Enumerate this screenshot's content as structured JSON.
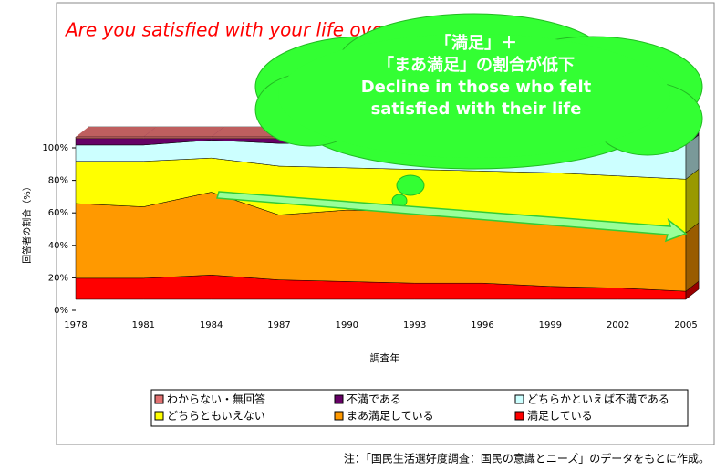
{
  "chart_data": {
    "type": "area",
    "stacked": true,
    "title": "Are you satisfied with your life overall?",
    "callout": [
      "「満足」＋",
      "「まあ満足」の割合が低下",
      "Decline in those who felt",
      "satisfied with their life"
    ],
    "xlabel": "調査年",
    "ylabel": "回答者の割合（%）",
    "note": "注：「国民生活選好度調査：国民の意識とニーズ」のデータをもとに作成。",
    "categories": [
      "1978",
      "1981",
      "1984",
      "1987",
      "1990",
      "1993",
      "1996",
      "1999",
      "2002",
      "2005"
    ],
    "ylim": [
      0,
      100
    ],
    "yticks": [
      {
        "value": 0,
        "label": "0%"
      },
      {
        "value": 20,
        "label": "20%"
      },
      {
        "value": 40,
        "label": "40%"
      },
      {
        "value": 60,
        "label": "60%"
      },
      {
        "value": 80,
        "label": "80%"
      },
      {
        "value": 100,
        "label": "100%"
      }
    ],
    "series": [
      {
        "name": "満足している",
        "color": "#ff0000",
        "values": [
          13,
          13,
          15,
          12,
          11,
          10,
          10,
          8,
          7,
          5
        ]
      },
      {
        "name": "まあ満足している",
        "color": "#ff9900",
        "values": [
          46,
          44,
          51,
          40,
          44,
          44,
          40,
          39,
          37,
          36
        ]
      },
      {
        "name": "どちらともいえない",
        "color": "#ffff00",
        "values": [
          26,
          28,
          21,
          30,
          26,
          26,
          29,
          31,
          32,
          33
        ]
      },
      {
        "name": "どちらかといえば不満である",
        "color": "#ccffff",
        "values": [
          10,
          10,
          11,
          14,
          15,
          16,
          17,
          17,
          19,
          21
        ]
      },
      {
        "name": "不満である",
        "color": "#660066",
        "values": [
          4,
          4,
          1,
          3,
          3,
          3,
          3,
          4,
          4,
          4
        ]
      },
      {
        "name": "わからない・無回答",
        "color": "#e07070",
        "values": [
          1,
          1,
          1,
          1,
          1,
          1,
          1,
          1,
          1,
          1
        ]
      }
    ]
  }
}
